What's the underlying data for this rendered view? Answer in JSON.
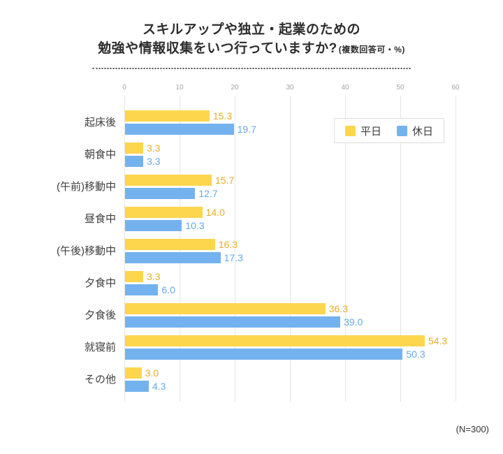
{
  "title": {
    "line1": "スキルアップや独立・起業のための",
    "line2": "勉強や情報収集をいつ行っていますか?",
    "note": "(複数回答可・%)"
  },
  "footnote": "(N=300)",
  "chart_data": {
    "type": "bar",
    "orientation": "horizontal",
    "title": "スキルアップや独立・起業のための勉強や情報収集をいつ行っていますか?(複数回答可・%)",
    "categories": [
      "起床後",
      "朝食中",
      "(午前)移動中",
      "昼食中",
      "(午後)移動中",
      "夕食中",
      "夕食後",
      "就寝前",
      "その他"
    ],
    "series": [
      {
        "name": "平日",
        "color": "#FDD64E",
        "label_color": "#E9AC26",
        "values": [
          15.3,
          3.3,
          15.7,
          14.0,
          16.3,
          3.3,
          36.3,
          54.3,
          3.0
        ]
      },
      {
        "name": "休日",
        "color": "#74B2EF",
        "label_color": "#64A8EC",
        "values": [
          19.7,
          3.3,
          12.7,
          10.3,
          17.3,
          6.0,
          39.0,
          50.3,
          4.3
        ]
      }
    ],
    "x_ticks": [
      0,
      10,
      20,
      30,
      40,
      50,
      60
    ],
    "xlim": [
      0,
      60
    ],
    "value_decimals": 1,
    "grid": true,
    "legend_position": "top-right-inside",
    "sample_note": "(N=300)",
    "colors": {
      "gridline": "#e4e4e4",
      "tick_label": "#a3a3a3",
      "category_label": "#3d3d3d",
      "title_text": "#2d2d2d"
    }
  }
}
